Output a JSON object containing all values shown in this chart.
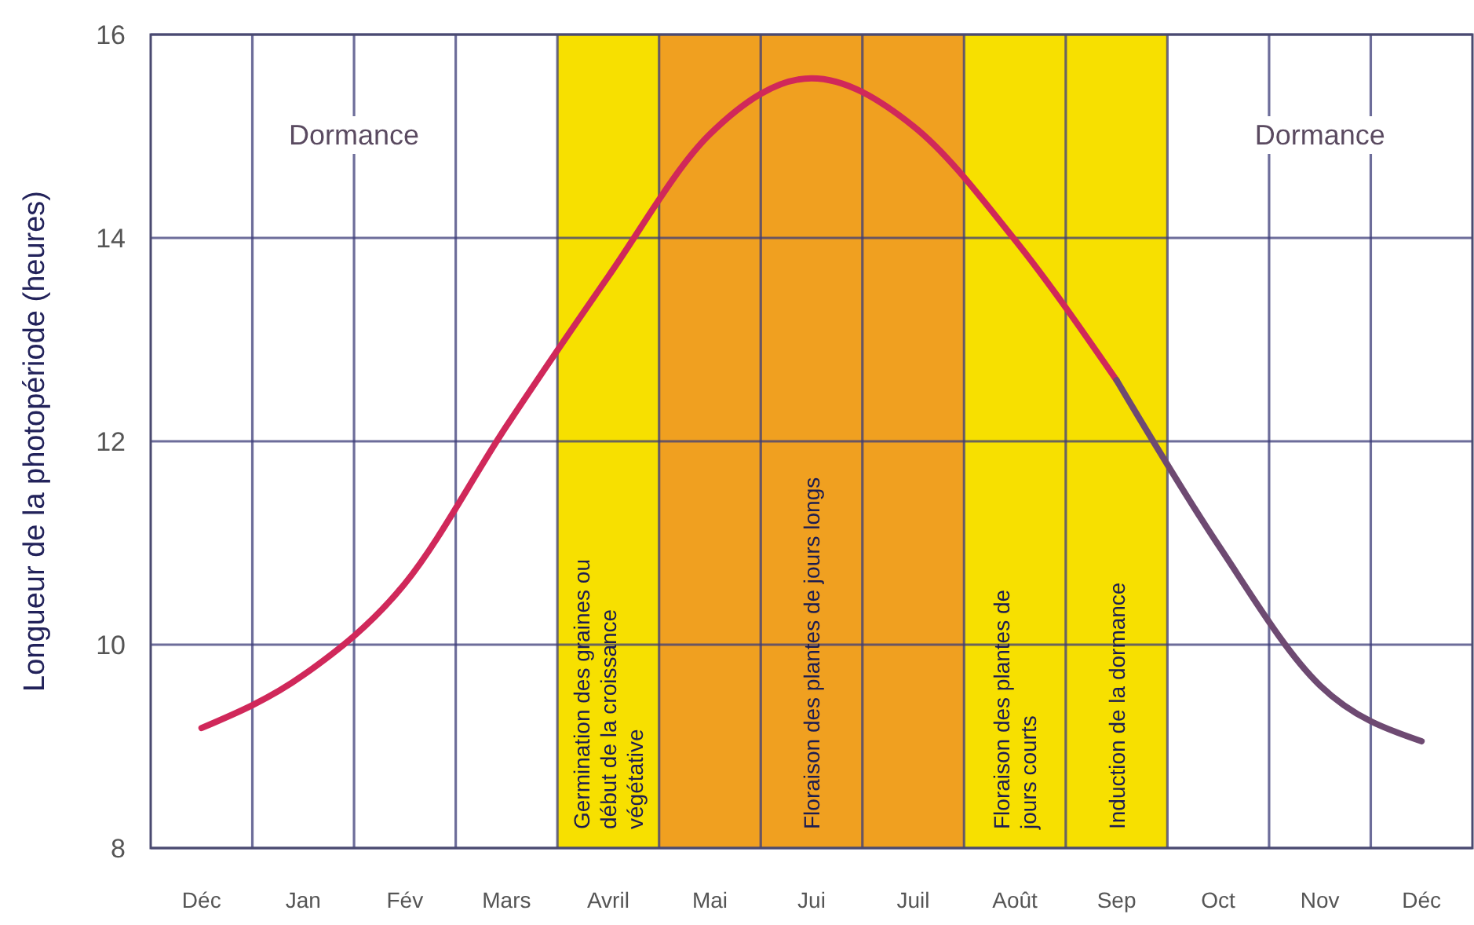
{
  "chart_data": {
    "type": "line",
    "ylabel": "Longueur de la photopériode (heures)",
    "categories": [
      "Déc",
      "Jan",
      "Fév",
      "Mars",
      "Avril",
      "Mai",
      "Jui",
      "Juil",
      "Août",
      "Sep",
      "Oct",
      "Nov",
      "Déc"
    ],
    "ylim": [
      8,
      16
    ],
    "yticks": [
      8,
      10,
      12,
      14,
      16
    ],
    "grid": true,
    "line_style": "solid",
    "marker": "none",
    "series": [
      {
        "color": "#d0285a",
        "values": [
          9.18,
          9.7,
          10.6,
          12.15,
          13.62,
          15.02,
          15.57,
          15.1,
          13.98,
          12.6,
          null,
          null,
          null
        ]
      },
      {
        "color": "#6e4a72",
        "values": [
          null,
          null,
          null,
          null,
          null,
          null,
          null,
          null,
          null,
          12.6,
          10.98,
          9.6,
          9.05
        ]
      }
    ],
    "bands": [
      {
        "axis": "x",
        "from": "Avril",
        "to": "Avril",
        "color": "#f7e000",
        "label": "Germination des graines ou début de la croissance végétative"
      },
      {
        "axis": "x",
        "from": "Mai",
        "to": "Juil",
        "color": "#f0a020",
        "label": "Floraison des plantes de jours longs"
      },
      {
        "axis": "x",
        "from": "Août",
        "to": "Août",
        "color": "#f7e000",
        "label": "Floraison des plantes de jours courts"
      },
      {
        "axis": "x",
        "from": "Sep",
        "to": "Sep",
        "color": "#f7e000",
        "label": "Induction de la dormance"
      }
    ],
    "annotations": [
      "Dormance",
      "Dormance"
    ]
  }
}
